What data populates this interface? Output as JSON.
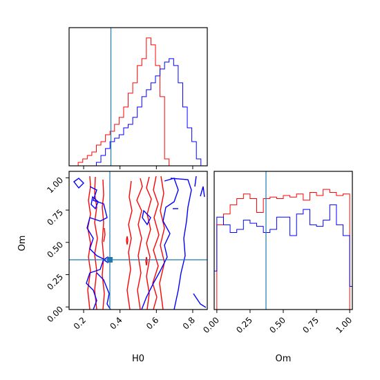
{
  "chart_data": {
    "type": "corner",
    "parameters": [
      "H0",
      "Om"
    ],
    "truth": {
      "H0": 0.35,
      "Om": 0.37
    },
    "colors": {
      "series_a": "#ff0000",
      "series_b": "#0000ff",
      "truth": "#1f77b4"
    },
    "panels": [
      {
        "name": "hist-H0",
        "type": "histogram",
        "xlim": [
          0.12,
          0.88
        ],
        "xticks": [
          0.2,
          0.4,
          0.6,
          0.8
        ],
        "show_tick_labels": false,
        "bin_edges": [
          0.12,
          0.145,
          0.17,
          0.195,
          0.22,
          0.245,
          0.27,
          0.295,
          0.32,
          0.345,
          0.37,
          0.395,
          0.42,
          0.445,
          0.47,
          0.495,
          0.52,
          0.545,
          0.57,
          0.595,
          0.62,
          0.645,
          0.67,
          0.695,
          0.72,
          0.745,
          0.77,
          0.795,
          0.82,
          0.845,
          0.87
        ],
        "series": [
          {
            "color": "red",
            "counts": [
              0,
              0,
              1,
              2,
              3,
              4,
              6,
              7,
              9,
              10,
              12,
              14,
              17,
              21,
              24,
              29,
              31,
              37,
              35,
              29,
              20,
              2,
              0,
              0,
              0,
              0,
              0,
              0,
              0,
              0
            ]
          },
          {
            "color": "blue",
            "counts": [
              0,
              0,
              0,
              0,
              0,
              0,
              1,
              3,
              5,
              7,
              8,
              9,
              11,
              12,
              14,
              17,
              20,
              22,
              24,
              26,
              28,
              30,
              31,
              29,
              24,
              17,
              11,
              7,
              2,
              0
            ]
          }
        ]
      },
      {
        "name": "contour-H0-Om",
        "type": "contour",
        "xlabel": "H0",
        "ylabel": "Om",
        "xlim": [
          0.12,
          0.88
        ],
        "ylim": [
          -0.02,
          1.05
        ],
        "xticks": [
          "0.2",
          "0.4",
          "0.6",
          "0.8"
        ],
        "yticks": [
          "0.00",
          "0.25",
          "0.50",
          "0.75",
          "1.00"
        ]
      },
      {
        "name": "hist-Om",
        "type": "histogram",
        "xlabel": "Om",
        "xlim": [
          -0.02,
          1.02
        ],
        "xticks": [
          "0.00",
          "0.25",
          "0.50",
          "0.75",
          "1.00"
        ],
        "bin_edges": [
          -0.02,
          0.0,
          0.05,
          0.1,
          0.15,
          0.2,
          0.25,
          0.3,
          0.35,
          0.4,
          0.45,
          0.5,
          0.55,
          0.6,
          0.65,
          0.7,
          0.75,
          0.8,
          0.85,
          0.9,
          0.95,
          1.0,
          1.02
        ],
        "series": [
          {
            "color": "red",
            "counts": [
              0,
              0.55,
              0.62,
              0.68,
              0.72,
              0.75,
              0.72,
              0.63,
              0.72,
              0.73,
              0.72,
              0.74,
              0.73,
              0.75,
              0.71,
              0.76,
              0.74,
              0.78,
              0.76,
              0.74,
              0.75,
              0.0
            ]
          },
          {
            "color": "blue",
            "counts": [
              0.25,
              0.6,
              0.55,
              0.5,
              0.52,
              0.58,
              0.56,
              0.54,
              0.5,
              0.52,
              0.6,
              0.6,
              0.48,
              0.62,
              0.65,
              0.55,
              0.54,
              0.58,
              0.68,
              0.55,
              0.48,
              0.15
            ]
          }
        ]
      }
    ]
  }
}
